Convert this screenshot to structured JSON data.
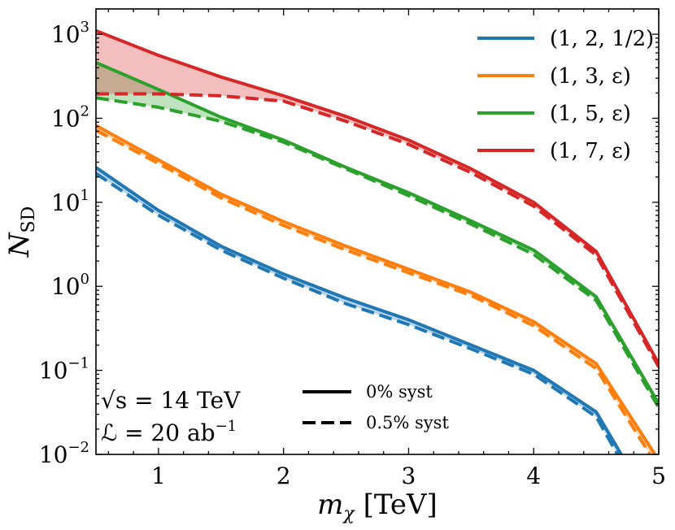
{
  "chart_data": {
    "type": "line",
    "xlabel": "m_χ [TeV]",
    "ylabel": "N_SD",
    "xlim": [
      0.5,
      5
    ],
    "ylim": [
      0.01,
      2000
    ],
    "yscale": "log",
    "grid": false,
    "x_tick_labels": [
      "1",
      "2",
      "3",
      "4",
      "5"
    ],
    "y_tick_labels": [
      {
        "base": "10",
        "exp": "−2"
      },
      {
        "base": "10",
        "exp": "−1"
      },
      {
        "base": "10",
        "exp": "0"
      },
      {
        "base": "10",
        "exp": "1"
      },
      {
        "base": "10",
        "exp": "2"
      },
      {
        "base": "10",
        "exp": "3"
      }
    ],
    "series": [
      {
        "name": "(1, 2, 1/2)",
        "color": "#1f77b4",
        "solid": [
          [
            0.5,
            26
          ],
          [
            1,
            8
          ],
          [
            1.5,
            3.0
          ],
          [
            2,
            1.4
          ],
          [
            2.5,
            0.72
          ],
          [
            3,
            0.4
          ],
          [
            3.5,
            0.2
          ],
          [
            4,
            0.1
          ],
          [
            4.5,
            0.032
          ],
          [
            4.7,
            0.01
          ]
        ],
        "dashed": [
          [
            0.5,
            22
          ],
          [
            1,
            7
          ],
          [
            1.5,
            2.7
          ],
          [
            2,
            1.25
          ],
          [
            2.5,
            0.62
          ],
          [
            3,
            0.35
          ],
          [
            3.5,
            0.18
          ],
          [
            4,
            0.09
          ],
          [
            4.5,
            0.028
          ],
          [
            4.67,
            0.01
          ]
        ]
      },
      {
        "name": "(1, 3, ε)",
        "color": "#ff7f0e",
        "solid": [
          [
            0.5,
            82
          ],
          [
            1,
            32
          ],
          [
            1.5,
            12.5
          ],
          [
            2,
            5.9
          ],
          [
            2.5,
            3.0
          ],
          [
            3,
            1.6
          ],
          [
            3.5,
            0.85
          ],
          [
            4,
            0.38
          ],
          [
            4.5,
            0.12
          ],
          [
            4.97,
            0.01
          ]
        ],
        "dashed": [
          [
            0.5,
            72
          ],
          [
            1,
            29
          ],
          [
            1.5,
            11.3
          ],
          [
            2,
            5.3
          ],
          [
            2.5,
            2.7
          ],
          [
            3,
            1.45
          ],
          [
            3.5,
            0.78
          ],
          [
            4,
            0.34
          ],
          [
            4.5,
            0.105
          ],
          [
            4.93,
            0.01
          ]
        ]
      },
      {
        "name": "(1, 5, ε)",
        "color": "#2ca02c",
        "solid": [
          [
            0.5,
            460
          ],
          [
            1,
            220
          ],
          [
            1.5,
            103
          ],
          [
            2,
            55
          ],
          [
            2.5,
            26
          ],
          [
            3,
            13
          ],
          [
            3.5,
            6.0
          ],
          [
            4,
            2.7
          ],
          [
            4.5,
            0.75
          ],
          [
            5,
            0.04
          ]
        ],
        "dashed": [
          [
            0.5,
            175
          ],
          [
            1,
            135
          ],
          [
            1.5,
            92
          ],
          [
            2,
            52
          ],
          [
            2.5,
            25
          ],
          [
            3,
            12
          ],
          [
            3.5,
            5.5
          ],
          [
            4,
            2.4
          ],
          [
            4.5,
            0.68
          ],
          [
            5,
            0.036
          ]
        ]
      },
      {
        "name": "(1, 7, ε)",
        "color": "#d62728",
        "solid": [
          [
            0.5,
            1100
          ],
          [
            1,
            560
          ],
          [
            1.5,
            310
          ],
          [
            2,
            185
          ],
          [
            2.5,
            105
          ],
          [
            3,
            55
          ],
          [
            3.5,
            25
          ],
          [
            4,
            10
          ],
          [
            4.5,
            2.6
          ],
          [
            5,
            0.12
          ]
        ],
        "dashed": [
          [
            0.5,
            195
          ],
          [
            1,
            195
          ],
          [
            1.5,
            185
          ],
          [
            2,
            160
          ],
          [
            2.5,
            92
          ],
          [
            3,
            49
          ],
          [
            3.5,
            22.5
          ],
          [
            4,
            9.0
          ],
          [
            4.5,
            2.35
          ],
          [
            5,
            0.11
          ]
        ]
      }
    ],
    "legend": [
      "(1, 2, 1/2)",
      "(1, 3, ε)",
      "(1, 5, ε)",
      "(1, 7, ε)"
    ],
    "legend_position": "top-right",
    "style_legend": [
      "0% syst",
      "0.5% syst"
    ],
    "annotations": {
      "energy": "√s = 14 TeV",
      "lumi_label": "ℒ = 20 ab",
      "lumi_exp": "−1"
    }
  }
}
